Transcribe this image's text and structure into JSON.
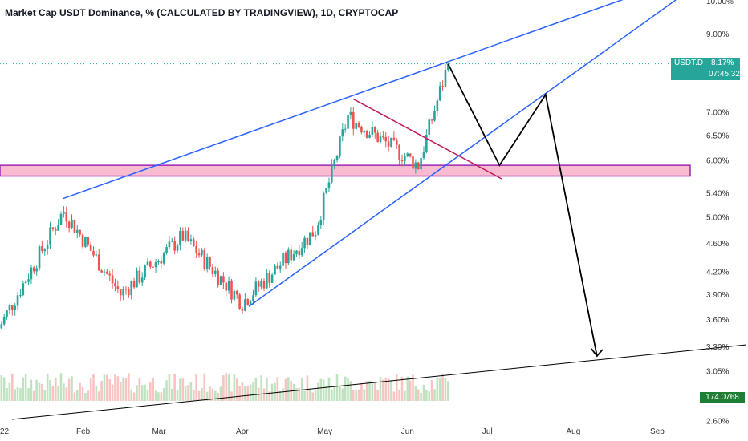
{
  "header": {
    "title": "Market Cap USDT Dominance, % (CALCULATED BY TRADINGVIEW), 1D, CRYPTOCAP"
  },
  "price_badge": {
    "symbol": "USDT.D",
    "value": "8.17%",
    "countdown": "07:45:32"
  },
  "volume_badge": {
    "value": "174.0768"
  },
  "colors": {
    "up": "#26a69a",
    "down": "#ef5350",
    "trendline": "#2962ff",
    "zone_fill": "#f8bbd0",
    "zone_border": "#9c27b0",
    "triangle_line": "#c2185b",
    "projection": "#000000"
  },
  "chart_data": {
    "type": "candlestick",
    "title": "Market Cap USDT Dominance, % (CALCULATED BY TRADINGVIEW), 1D, CRYPTOCAP",
    "y_scale": "log",
    "y_ticks": [
      "10.00%",
      "9.00%",
      "7.00%",
      "6.50%",
      "6.00%",
      "5.40%",
      "5.00%",
      "4.60%",
      "4.20%",
      "3.90%",
      "3.60%",
      "3.30%",
      "3.05%",
      "2.60%"
    ],
    "x_ticks": [
      "22",
      "Feb",
      "Mar",
      "Apr",
      "May",
      "Jun",
      "Jul",
      "Aug",
      "Sep"
    ],
    "last_value": 8.17,
    "key_closes": [
      {
        "date": "2022-01-01",
        "value": 3.5
      },
      {
        "date": "2022-01-25",
        "value": 5.1
      },
      {
        "date": "2022-02-15",
        "value": 3.9
      },
      {
        "date": "2022-03-10",
        "value": 4.7
      },
      {
        "date": "2022-04-01",
        "value": 3.8
      },
      {
        "date": "2022-04-28",
        "value": 4.8
      },
      {
        "date": "2022-05-10",
        "value": 6.9
      },
      {
        "date": "2022-06-05",
        "value": 5.9
      },
      {
        "date": "2022-06-16",
        "value": 8.17
      }
    ],
    "zone": {
      "low": 5.7,
      "high": 5.9
    },
    "projection_points": [
      {
        "date": "2022-06-16",
        "value": 8.17
      },
      {
        "date": "2022-07-05",
        "value": 5.9
      },
      {
        "date": "2022-07-22",
        "value": 7.4
      },
      {
        "date": "2022-08-10",
        "value": 3.2
      }
    ]
  }
}
